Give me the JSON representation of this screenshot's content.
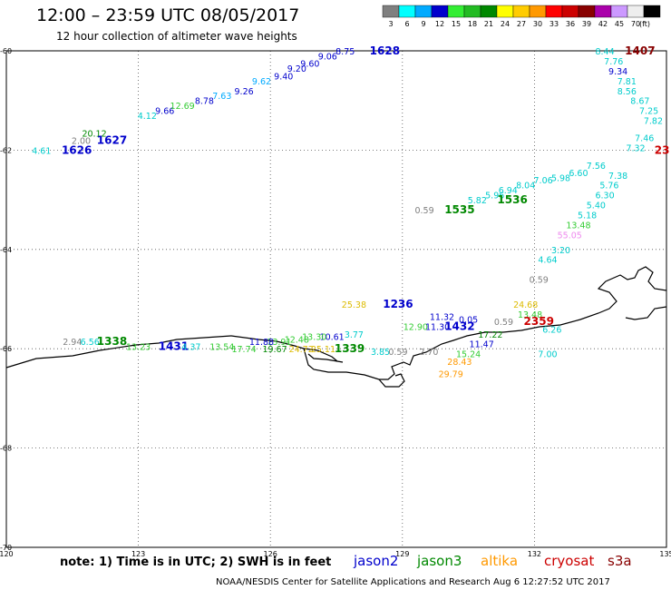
{
  "header": {
    "title": "12:00 – 23:59 UTC 08/05/2017",
    "subtitle": "12 hour collection of altimeter wave heights"
  },
  "legend": {
    "unit": "(ft)",
    "bins": [
      {
        "label": "3",
        "color": "#7f7f7f"
      },
      {
        "label": "6",
        "color": "#00ffff"
      },
      {
        "label": "9",
        "color": "#00aaff"
      },
      {
        "label": "12",
        "color": "#0000cc"
      },
      {
        "label": "15",
        "color": "#33ee33"
      },
      {
        "label": "18",
        "color": "#22bb22"
      },
      {
        "label": "21",
        "color": "#008800"
      },
      {
        "label": "24",
        "color": "#ffff00"
      },
      {
        "label": "27",
        "color": "#ffcc00"
      },
      {
        "label": "30",
        "color": "#ff9900"
      },
      {
        "label": "33",
        "color": "#ff0000"
      },
      {
        "label": "36",
        "color": "#cc0000"
      },
      {
        "label": "39",
        "color": "#880000"
      },
      {
        "label": "42",
        "color": "#aa00aa"
      },
      {
        "label": "45",
        "color": "#cc99ff"
      },
      {
        "label": "70",
        "color": "#eeeeee"
      },
      {
        "label": "",
        "color": "#000000"
      }
    ]
  },
  "axes": {
    "lon_range": [
      120,
      135
    ],
    "lat_range": [
      -70,
      -60
    ],
    "lon_ticks": [
      "120",
      "123",
      "126",
      "129",
      "132",
      "135"
    ],
    "lat_ticks": [
      "-60",
      "-62",
      "-64",
      "-66",
      "-68",
      "-70"
    ],
    "grid": "dotted"
  },
  "colors": {
    "jason2": "#0000cc",
    "jason3": "#008800",
    "altika": "#ff9900",
    "cryosat": "#cc0000",
    "s3a": "#880000",
    "grey": "#7f7f7f",
    "cyan": "#00cccc",
    "lightblue": "#00aaff",
    "green": "#33cc33",
    "yellow": "#ddbb00",
    "violet": "#ee88ee"
  },
  "labels": [
    {
      "text": "4.61",
      "lon": 120.8,
      "lat": -62.0,
      "c": "cyan"
    },
    {
      "text": "1626",
      "lon": 121.6,
      "lat": -62.0,
      "c": "jason2",
      "bold": true
    },
    {
      "text": "2.00",
      "lon": 121.7,
      "lat": -61.8,
      "c": "grey"
    },
    {
      "text": "20.12",
      "lon": 122.0,
      "lat": -61.65,
      "c": "jason3"
    },
    {
      "text": "1627",
      "lon": 122.4,
      "lat": -61.8,
      "c": "jason2",
      "bold": true
    },
    {
      "text": "4.12",
      "lon": 123.2,
      "lat": -61.3,
      "c": "cyan"
    },
    {
      "text": "9.66",
      "lon": 123.6,
      "lat": -61.2,
      "c": "jason2"
    },
    {
      "text": "12.69",
      "lon": 124.0,
      "lat": -61.1,
      "c": "green"
    },
    {
      "text": "8.78",
      "lon": 124.5,
      "lat": -61.0,
      "c": "jason2"
    },
    {
      "text": "7.63",
      "lon": 124.9,
      "lat": -60.9,
      "c": "lightblue"
    },
    {
      "text": "9.26",
      "lon": 125.4,
      "lat": -60.8,
      "c": "jason2"
    },
    {
      "text": "9.62",
      "lon": 125.8,
      "lat": -60.6,
      "c": "lightblue"
    },
    {
      "text": "9.40",
      "lon": 126.3,
      "lat": -60.5,
      "c": "jason2"
    },
    {
      "text": "9.20",
      "lon": 126.6,
      "lat": -60.35,
      "c": "jason2"
    },
    {
      "text": "9.60",
      "lon": 126.9,
      "lat": -60.25,
      "c": "jason2"
    },
    {
      "text": "9.06",
      "lon": 127.3,
      "lat": -60.1,
      "c": "jason2"
    },
    {
      "text": "8.75",
      "lon": 127.7,
      "lat": -60.0,
      "c": "jason2"
    },
    {
      "text": "1628",
      "lon": 128.6,
      "lat": -60.0,
      "c": "jason2",
      "bold": true
    },
    {
      "text": "8.44",
      "lon": 133.6,
      "lat": -60.0,
      "c": "cyan"
    },
    {
      "text": "1407",
      "lon": 134.4,
      "lat": -60.0,
      "c": "s3a",
      "bold": true
    },
    {
      "text": "7.76",
      "lon": 133.8,
      "lat": -60.2,
      "c": "cyan"
    },
    {
      "text": "9.34",
      "lon": 133.9,
      "lat": -60.4,
      "c": "jason2"
    },
    {
      "text": "7.81",
      "lon": 134.1,
      "lat": -60.6,
      "c": "cyan"
    },
    {
      "text": "8.56",
      "lon": 134.1,
      "lat": -60.8,
      "c": "cyan"
    },
    {
      "text": "8.67",
      "lon": 134.4,
      "lat": -61.0,
      "c": "cyan"
    },
    {
      "text": "7.25",
      "lon": 134.6,
      "lat": -61.2,
      "c": "cyan"
    },
    {
      "text": "7.82",
      "lon": 134.7,
      "lat": -61.4,
      "c": "cyan"
    },
    {
      "text": "7.46",
      "lon": 134.5,
      "lat": -61.75,
      "c": "cyan"
    },
    {
      "text": "7.32",
      "lon": 134.3,
      "lat": -61.95,
      "c": "cyan"
    },
    {
      "text": "23",
      "lon": 134.9,
      "lat": -62.0,
      "c": "cryosat",
      "bold": true
    },
    {
      "text": "7.56",
      "lon": 133.4,
      "lat": -62.3,
      "c": "cyan"
    },
    {
      "text": "7.38",
      "lon": 133.9,
      "lat": -62.5,
      "c": "cyan"
    },
    {
      "text": "6.60",
      "lon": 133.0,
      "lat": -62.45,
      "c": "cyan"
    },
    {
      "text": "5.98",
      "lon": 132.6,
      "lat": -62.55,
      "c": "cyan"
    },
    {
      "text": "5.76",
      "lon": 133.7,
      "lat": -62.7,
      "c": "cyan"
    },
    {
      "text": "7.06",
      "lon": 132.2,
      "lat": -62.6,
      "c": "cyan"
    },
    {
      "text": "8.04",
      "lon": 131.8,
      "lat": -62.7,
      "c": "cyan"
    },
    {
      "text": "6.30",
      "lon": 133.6,
      "lat": -62.9,
      "c": "cyan"
    },
    {
      "text": "6.94",
      "lon": 131.4,
      "lat": -62.8,
      "c": "cyan"
    },
    {
      "text": "5.96",
      "lon": 131.1,
      "lat": -62.9,
      "c": "cyan"
    },
    {
      "text": "1536",
      "lon": 131.5,
      "lat": -63.0,
      "c": "jason3",
      "bold": true
    },
    {
      "text": "5.82",
      "lon": 130.7,
      "lat": -63.0,
      "c": "cyan"
    },
    {
      "text": "5.40",
      "lon": 133.4,
      "lat": -63.1,
      "c": "cyan"
    },
    {
      "text": "0.59",
      "lon": 129.5,
      "lat": -63.2,
      "c": "grey"
    },
    {
      "text": "1535",
      "lon": 130.3,
      "lat": -63.2,
      "c": "jason3",
      "bold": true
    },
    {
      "text": "5.18",
      "lon": 133.2,
      "lat": -63.3,
      "c": "cyan"
    },
    {
      "text": "13.48",
      "lon": 133.0,
      "lat": -63.5,
      "c": "green"
    },
    {
      "text": "55.05",
      "lon": 132.8,
      "lat": -63.7,
      "c": "violet"
    },
    {
      "text": "3.20",
      "lon": 132.6,
      "lat": -64.0,
      "c": "cyan"
    },
    {
      "text": "4.64",
      "lon": 132.3,
      "lat": -64.2,
      "c": "cyan"
    },
    {
      "text": "0.59",
      "lon": 132.1,
      "lat": -64.6,
      "c": "grey"
    },
    {
      "text": "24.68",
      "lon": 131.8,
      "lat": -65.1,
      "c": "yellow"
    },
    {
      "text": "13.48",
      "lon": 131.9,
      "lat": -65.3,
      "c": "green"
    },
    {
      "text": "2359",
      "lon": 132.1,
      "lat": -65.45,
      "c": "cryosat",
      "bold": true
    },
    {
      "text": "0.59",
      "lon": 131.3,
      "lat": -65.45,
      "c": "grey"
    },
    {
      "text": "6.26",
      "lon": 132.4,
      "lat": -65.6,
      "c": "cyan"
    },
    {
      "text": "17.22",
      "lon": 131.0,
      "lat": -65.7,
      "c": "jason3"
    },
    {
      "text": "11.47",
      "lon": 130.8,
      "lat": -65.9,
      "c": "jason2"
    },
    {
      "text": "15.24",
      "lon": 130.5,
      "lat": -66.1,
      "c": "green"
    },
    {
      "text": "7.00",
      "lon": 132.3,
      "lat": -66.1,
      "c": "cyan"
    },
    {
      "text": "25.38",
      "lon": 127.9,
      "lat": -65.1,
      "c": "yellow"
    },
    {
      "text": "1236",
      "lon": 128.9,
      "lat": -65.1,
      "c": "jason2",
      "bold": true
    },
    {
      "text": "11.32",
      "lon": 129.9,
      "lat": -65.35,
      "c": "jason2"
    },
    {
      "text": "0.05",
      "lon": 130.5,
      "lat": -65.4,
      "c": "jason2"
    },
    {
      "text": "12.90",
      "lon": 129.3,
      "lat": -65.55,
      "c": "green"
    },
    {
      "text": "11.30",
      "lon": 129.8,
      "lat": -65.55,
      "c": "jason2"
    },
    {
      "text": "1432",
      "lon": 130.3,
      "lat": -65.55,
      "c": "jason2",
      "bold": true
    },
    {
      "text": "3.77",
      "lon": 127.9,
      "lat": -65.7,
      "c": "cyan"
    },
    {
      "text": "10.61",
      "lon": 127.4,
      "lat": -65.75,
      "c": "jason2"
    },
    {
      "text": "13.30",
      "lon": 127.0,
      "lat": -65.75,
      "c": "green"
    },
    {
      "text": "12.48",
      "lon": 126.6,
      "lat": -65.8,
      "c": "green"
    },
    {
      "text": "13.91",
      "lon": 126.2,
      "lat": -65.85,
      "c": "green"
    },
    {
      "text": "11.88",
      "lon": 125.8,
      "lat": -65.85,
      "c": "jason2"
    },
    {
      "text": "2.94",
      "lon": 121.5,
      "lat": -65.85,
      "c": "grey"
    },
    {
      "text": "6.56",
      "lon": 121.9,
      "lat": -65.85,
      "c": "cyan"
    },
    {
      "text": "1338",
      "lon": 122.4,
      "lat": -65.85,
      "c": "jason3",
      "bold": true
    },
    {
      "text": "13.23",
      "lon": 123.0,
      "lat": -65.95,
      "c": "green"
    },
    {
      "text": "1431",
      "lon": 123.8,
      "lat": -65.95,
      "c": "jason2",
      "bold": true
    },
    {
      "text": "4.37",
      "lon": 124.2,
      "lat": -65.95,
      "c": "cyan"
    },
    {
      "text": "13.54",
      "lon": 124.9,
      "lat": -65.95,
      "c": "green"
    },
    {
      "text": "17.74",
      "lon": 125.4,
      "lat": -66.0,
      "c": "green"
    },
    {
      "text": "19.67",
      "lon": 126.1,
      "lat": -66.0,
      "c": "jason3"
    },
    {
      "text": "24.72",
      "lon": 126.7,
      "lat": -66.0,
      "c": "yellow"
    },
    {
      "text": "25.11",
      "lon": 127.2,
      "lat": -66.0,
      "c": "yellow"
    },
    {
      "text": "1339",
      "lon": 127.8,
      "lat": -66.0,
      "c": "jason3",
      "bold": true
    },
    {
      "text": "3.85",
      "lon": 128.5,
      "lat": -66.05,
      "c": "cyan"
    },
    {
      "text": "0.59",
      "lon": 128.9,
      "lat": -66.05,
      "c": "grey"
    },
    {
      "text": "2.70",
      "lon": 129.6,
      "lat": -66.05,
      "c": "grey"
    },
    {
      "text": "28.43",
      "lon": 130.3,
      "lat": -66.25,
      "c": "altika"
    },
    {
      "text": "29.79",
      "lon": 130.1,
      "lat": -66.5,
      "c": "altika"
    }
  ],
  "note": "note: 1) Time is in UTC; 2) SWH is in feet",
  "satellites": [
    {
      "name": "jason2",
      "c": "jason2"
    },
    {
      "name": "jason3",
      "c": "jason3"
    },
    {
      "name": "altika",
      "c": "altika"
    },
    {
      "name": "cryosat",
      "c": "cryosat"
    },
    {
      "name": "s3a",
      "c": "s3a"
    }
  ],
  "footer": "NOAA/NESDIS Center for Satellite Applications and Research   Aug  6 12:27:52 UTC 2017"
}
